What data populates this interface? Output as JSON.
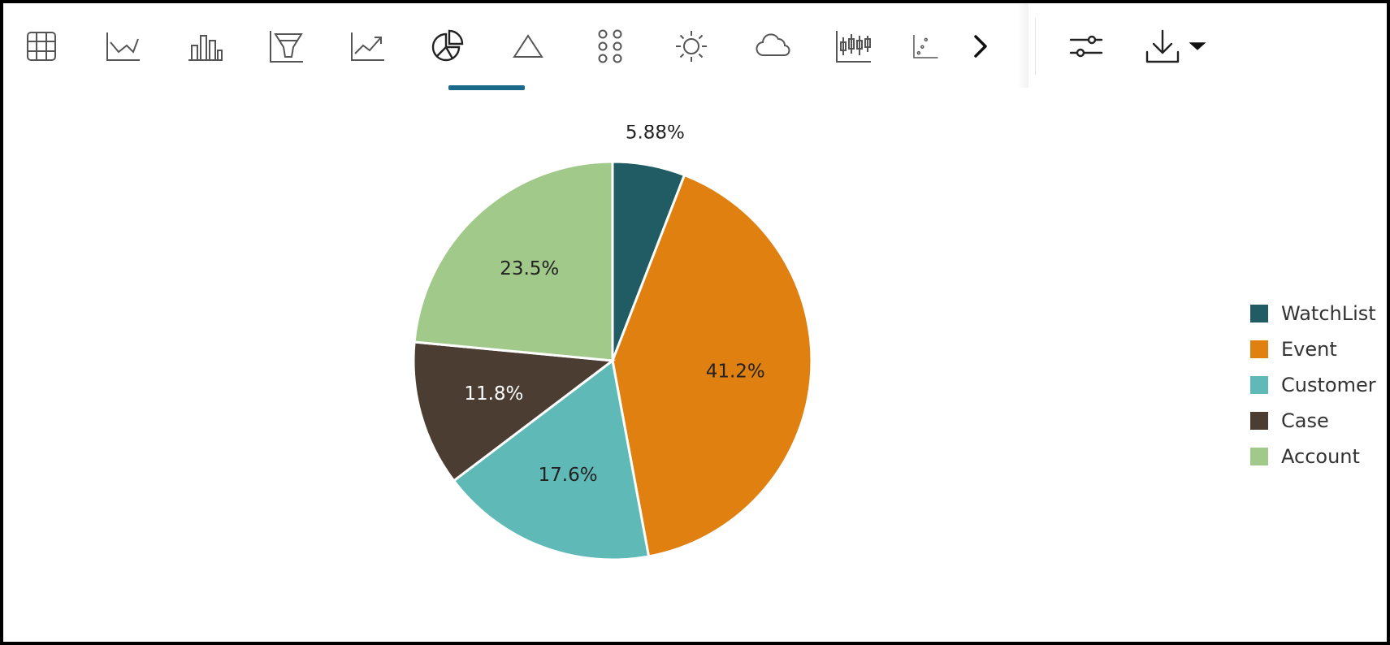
{
  "toolbar": {
    "chart_type_buttons": [
      {
        "icon": "table-icon"
      },
      {
        "icon": "line-chart-icon"
      },
      {
        "icon": "bar-chart-icon"
      },
      {
        "icon": "funnel-chart-icon"
      },
      {
        "icon": "trend-chart-icon"
      },
      {
        "icon": "pie-chart-icon",
        "active": true
      },
      {
        "icon": "pyramid-chart-icon"
      },
      {
        "icon": "bubble-grid-chart-icon"
      },
      {
        "icon": "sunburst-chart-icon"
      },
      {
        "icon": "tag-cloud-icon"
      },
      {
        "icon": "stock-chart-icon"
      },
      {
        "icon": "scatter-chart-icon"
      }
    ],
    "more_icon": "chevron-right-icon",
    "settings_icon": "sliders-icon",
    "download_icon": "download-icon",
    "download_menu_icon": "caret-down-icon",
    "active_color": "#1b6a8a"
  },
  "chart_data": {
    "type": "pie",
    "title": "",
    "slices": [
      {
        "label": "WatchList",
        "value": 5.88,
        "display": "5.88%",
        "color": "#215b63"
      },
      {
        "label": "Event",
        "value": 41.2,
        "display": "41.2%",
        "color": "#e08011"
      },
      {
        "label": "Customer",
        "value": 17.6,
        "display": "17.6%",
        "color": "#5fbab7"
      },
      {
        "label": "Case",
        "value": 11.8,
        "display": "11.8%",
        "color": "#4c3d33"
      },
      {
        "label": "Account",
        "value": 23.5,
        "display": "23.5%",
        "color": "#a1c98a"
      }
    ],
    "legend_position": "right",
    "start_angle": "top",
    "direction": "clockwise"
  }
}
